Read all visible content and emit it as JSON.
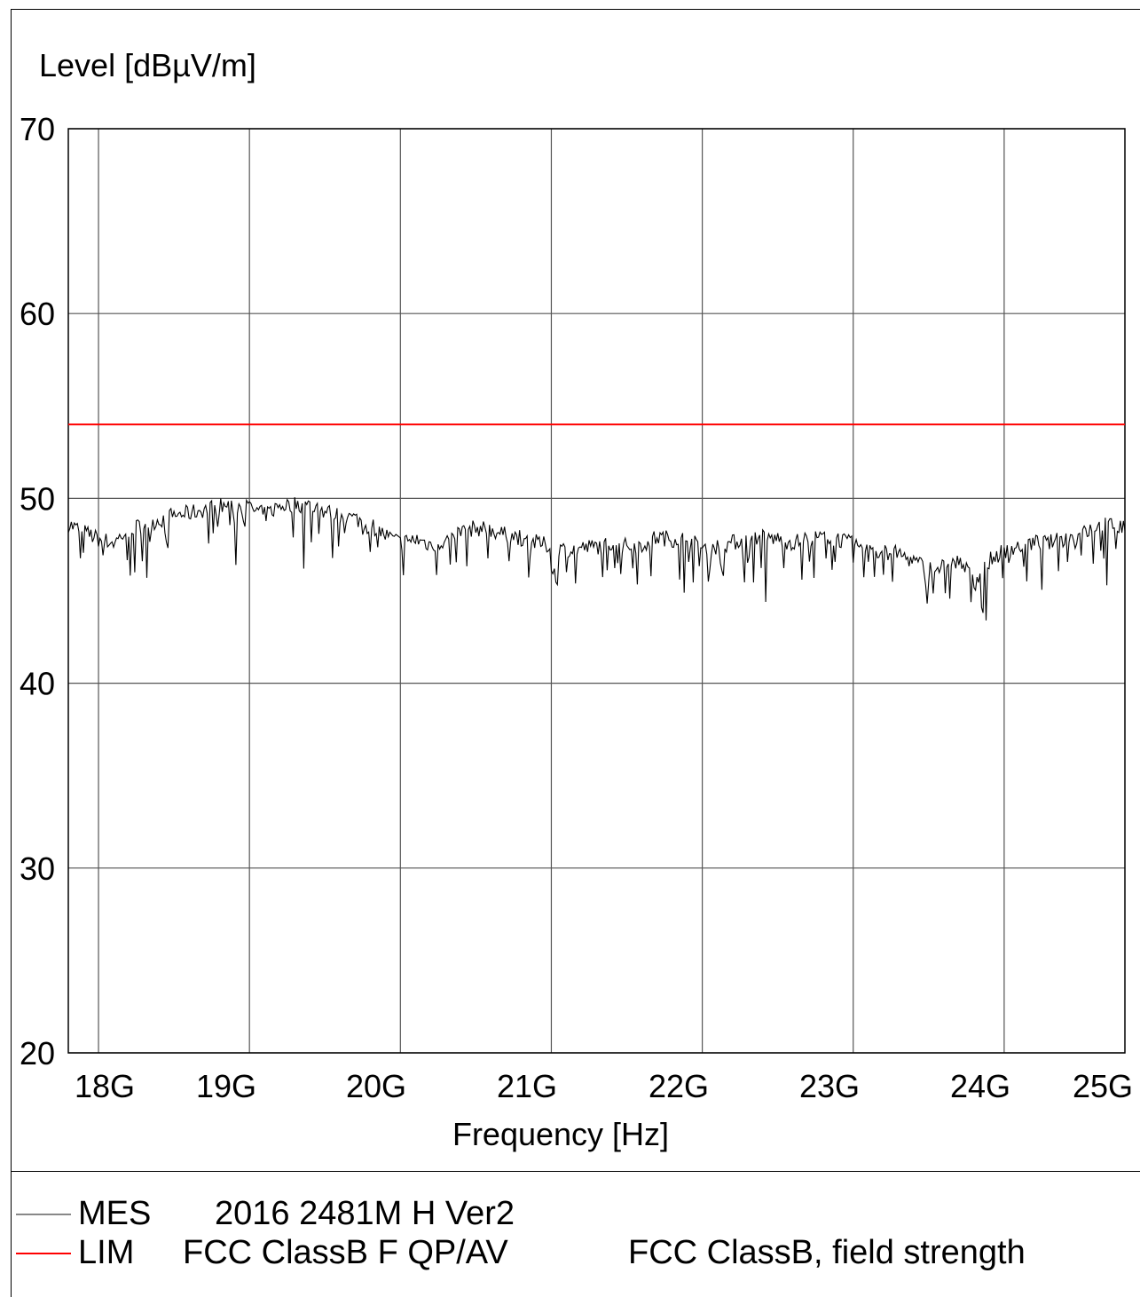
{
  "chart_data": {
    "type": "line",
    "ylabel": "Level [dBµV/m]",
    "xlabel": "Frequency [Hz]",
    "xlim": [
      17.8,
      24.8
    ],
    "ylim": [
      20,
      70
    ],
    "yticks": [
      20,
      30,
      40,
      50,
      60,
      70
    ],
    "y_tick_labels": [
      "20",
      "30",
      "40",
      "50",
      "60",
      "70"
    ],
    "xticks": [
      18,
      19,
      20,
      21,
      22,
      23,
      24,
      25
    ],
    "x_tick_labels": [
      "18G",
      "19G",
      "20G",
      "21G",
      "22G",
      "23G",
      "24G",
      "25G"
    ],
    "grid": true,
    "series": [
      {
        "name": "MES",
        "color": "#000000",
        "x": [
          17.8,
          17.9,
          18.0,
          18.1,
          18.2,
          18.3,
          18.4,
          18.5,
          18.6,
          18.7,
          18.8,
          18.9,
          19.0,
          19.1,
          19.2,
          19.3,
          19.4,
          19.5,
          19.6,
          19.7,
          19.8,
          19.9,
          20.0,
          20.1,
          20.2,
          20.3,
          20.4,
          20.5,
          20.6,
          20.7,
          20.8,
          20.9,
          21.0,
          21.1,
          21.2,
          21.3,
          21.4,
          21.5,
          21.6,
          21.7,
          21.8,
          21.9,
          22.0,
          22.1,
          22.2,
          22.3,
          22.4,
          22.5,
          22.6,
          22.7,
          22.8,
          22.9,
          23.0,
          23.1,
          23.2,
          23.3,
          23.4,
          23.5,
          23.6,
          23.7,
          23.8,
          23.9,
          24.0,
          24.1,
          24.2,
          24.3,
          24.4,
          24.5,
          24.6,
          24.7,
          24.8
        ],
        "values": [
          48.6,
          48.2,
          47.8,
          47.6,
          48.3,
          48.6,
          48.8,
          49.1,
          49.2,
          49.4,
          49.6,
          49.6,
          49.5,
          49.1,
          49.6,
          49.7,
          49.6,
          49.3,
          49.1,
          48.9,
          48.6,
          48.0,
          47.6,
          47.8,
          47.5,
          47.7,
          48.2,
          48.4,
          48.3,
          48.0,
          47.9,
          47.6,
          47.4,
          47.2,
          47.3,
          47.4,
          47.6,
          47.4,
          47.5,
          47.9,
          47.8,
          47.8,
          47.3,
          47.4,
          47.6,
          47.8,
          47.9,
          47.8,
          47.6,
          47.8,
          47.9,
          47.8,
          47.5,
          47.2,
          47.1,
          47.0,
          46.6,
          46.2,
          46.3,
          46.6,
          45.6,
          46.6,
          47.2,
          47.4,
          47.6,
          47.6,
          47.8,
          48.0,
          48.4,
          48.6,
          48.4
        ],
        "dips": [
          {
            "x": 18.24,
            "y": 46.0
          },
          {
            "x": 18.32,
            "y": 45.7
          },
          {
            "x": 18.91,
            "y": 46.4
          },
          {
            "x": 19.36,
            "y": 46.2
          },
          {
            "x": 19.59,
            "y": 47.4
          },
          {
            "x": 20.05,
            "y": 47.7
          },
          {
            "x": 20.72,
            "y": 46.6
          },
          {
            "x": 21.02,
            "y": 46.2
          },
          {
            "x": 21.16,
            "y": 45.4
          },
          {
            "x": 21.88,
            "y": 44.9
          },
          {
            "x": 22.04,
            "y": 45.5
          },
          {
            "x": 22.42,
            "y": 44.4
          },
          {
            "x": 23.48,
            "y": 45.3
          },
          {
            "x": 23.85,
            "y": 44.1
          },
          {
            "x": 23.88,
            "y": 43.4
          },
          {
            "x": 24.68,
            "y": 45.3
          }
        ]
      },
      {
        "name": "LIM",
        "color": "#ff0000",
        "x": [
          17.8,
          24.8
        ],
        "values": [
          54.0,
          54.0
        ]
      }
    ],
    "legend": [
      {
        "code": "MES",
        "name": "2016 2481M H Ver2",
        "desc": "",
        "color": "#888888"
      },
      {
        "code": "LIM",
        "name": "FCC ClassB F QP/AV",
        "desc": "FCC ClassB, field strength",
        "color": "#ff0000"
      }
    ]
  }
}
